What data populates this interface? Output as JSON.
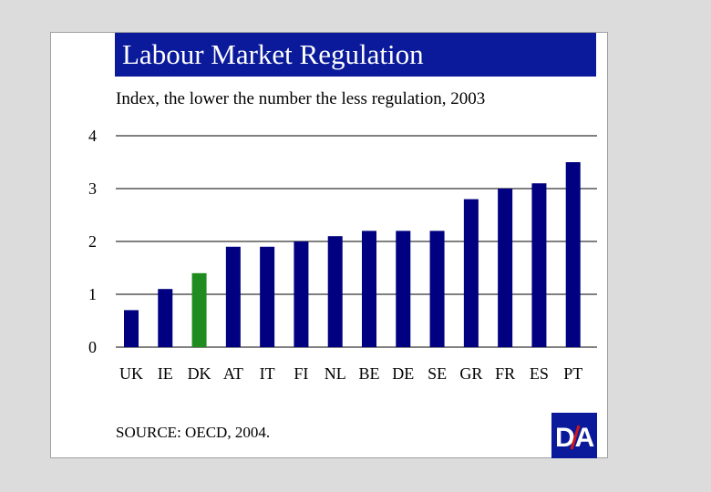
{
  "title": "Labour Market Regulation",
  "subtitle": "Index, the lower the number the less regulation, 2003",
  "source": "SOURCE: OECD, 2004.",
  "logo": {
    "text": "DA",
    "icon": "da-logo-icon"
  },
  "colors": {
    "title_bg": "#0a1a9a",
    "bar": "#000080",
    "highlight": "#1e8c1e"
  },
  "chart_data": {
    "type": "bar",
    "categories": [
      "UK",
      "IE",
      "DK",
      "AT",
      "IT",
      "FI",
      "NL",
      "BE",
      "DE",
      "SE",
      "GR",
      "FR",
      "ES",
      "PT"
    ],
    "values": [
      0.7,
      1.1,
      1.4,
      1.9,
      1.9,
      2.0,
      2.1,
      2.2,
      2.2,
      2.2,
      2.8,
      3.0,
      3.1,
      3.5
    ],
    "highlight_category": "DK",
    "ylim": [
      0,
      4
    ],
    "yticks": [
      0,
      1,
      2,
      3,
      4
    ],
    "ytick_labels_both_sides": true,
    "grid": true,
    "xlabel": "",
    "ylabel": ""
  }
}
